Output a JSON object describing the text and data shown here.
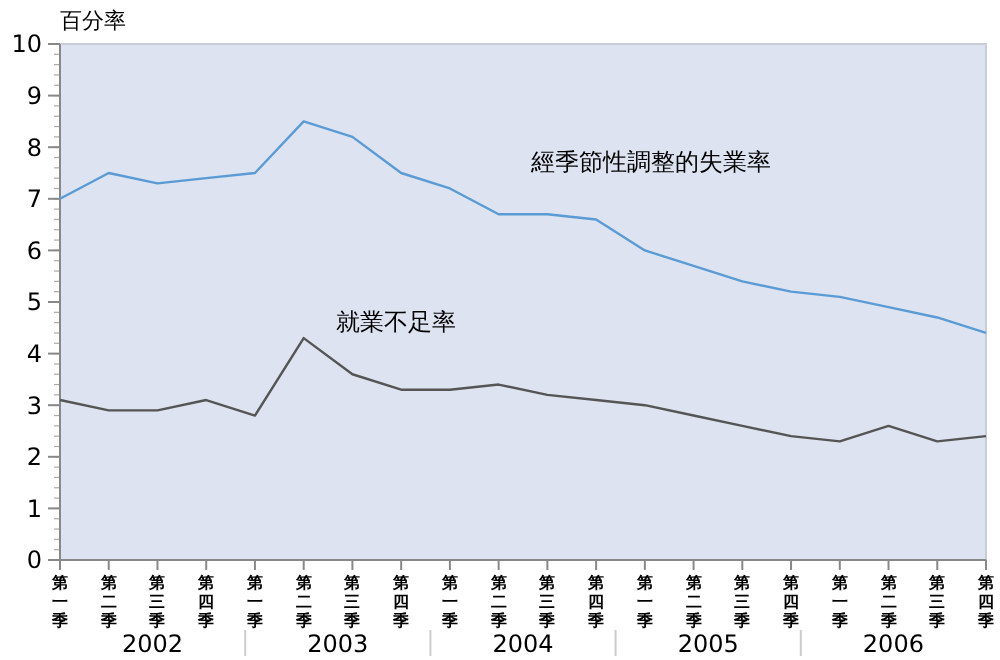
{
  "chart_data": {
    "type": "line",
    "ylabel": "百分率",
    "categories": [
      "第一季",
      "第二季",
      "第三季",
      "第四季",
      "第一季",
      "第二季",
      "第三季",
      "第四季",
      "第一季",
      "第二季",
      "第三季",
      "第四季",
      "第一季",
      "第二季",
      "第三季",
      "第四季",
      "第一季",
      "第二季",
      "第三季",
      "第四季"
    ],
    "series": [
      {
        "name": "經季節性調整的失業率",
        "color": "#5b9bd5",
        "values": [
          7.0,
          7.5,
          7.3,
          7.4,
          7.5,
          8.5,
          8.2,
          7.5,
          7.2,
          6.7,
          6.7,
          6.6,
          6.0,
          5.7,
          5.4,
          5.2,
          5.1,
          4.9,
          4.7,
          4.4
        ]
      },
      {
        "name": "就業不足率",
        "color": "#555555",
        "values": [
          3.1,
          2.9,
          2.9,
          3.1,
          2.8,
          4.3,
          3.6,
          3.3,
          3.3,
          3.4,
          3.2,
          3.1,
          3.0,
          2.8,
          2.6,
          2.4,
          2.3,
          2.6,
          2.3,
          2.4
        ]
      }
    ],
    "ylim": [
      0,
      10
    ],
    "yticks": [
      0,
      1,
      2,
      3,
      4,
      5,
      6,
      7,
      8,
      9,
      10
    ],
    "grid": false,
    "legend": false,
    "marker": "none",
    "line_style": "solid",
    "annotations": [
      "2002",
      "2003",
      "2004",
      "2005",
      "2006"
    ]
  }
}
